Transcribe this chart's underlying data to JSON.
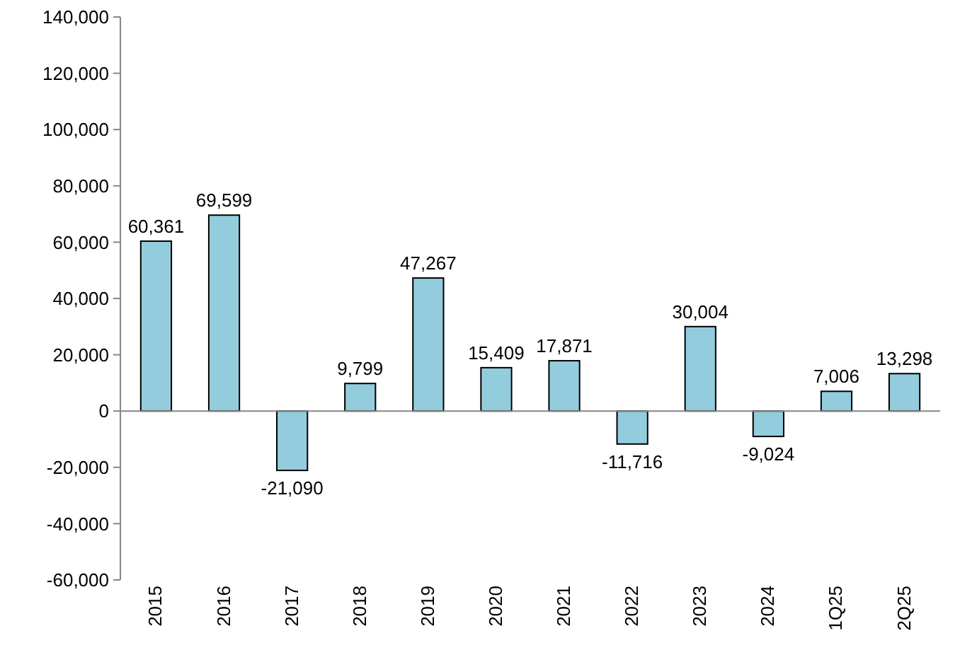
{
  "chart_data": {
    "type": "bar",
    "categories": [
      "2015",
      "2016",
      "2017",
      "2018",
      "2019",
      "2020",
      "2021",
      "2022",
      "2023",
      "2024",
      "1Q25",
      "2Q25"
    ],
    "values": [
      60361,
      69599,
      -21090,
      9799,
      47267,
      15409,
      17871,
      -11716,
      30004,
      -9024,
      7006,
      13298
    ],
    "color": "#93cddd",
    "ylim": [
      -60000,
      140000
    ],
    "yticks": [
      {
        "value": -60000,
        "label": "-60,000"
      },
      {
        "value": -40000,
        "label": "-40,000"
      },
      {
        "value": -20000,
        "label": "-20,000"
      },
      0,
      {
        "value": 20000,
        "label": "20,000"
      },
      {
        "value": 40000,
        "label": "40,000"
      },
      {
        "value": 60000,
        "label": "60,000"
      },
      {
        "value": 80000,
        "label": "80,000"
      },
      {
        "value": 100000,
        "label": "100,000"
      },
      {
        "value": 120000,
        "label": "120,000"
      },
      {
        "value": 140000,
        "label": "140,000"
      }
    ],
    "value_labels": [
      "60,361",
      "69,599",
      "-21,090",
      "9,799",
      "47,267",
      "15,409",
      "17,871",
      "-11,716",
      "30,004",
      "-9,024",
      "7,006",
      "13,298"
    ]
  }
}
